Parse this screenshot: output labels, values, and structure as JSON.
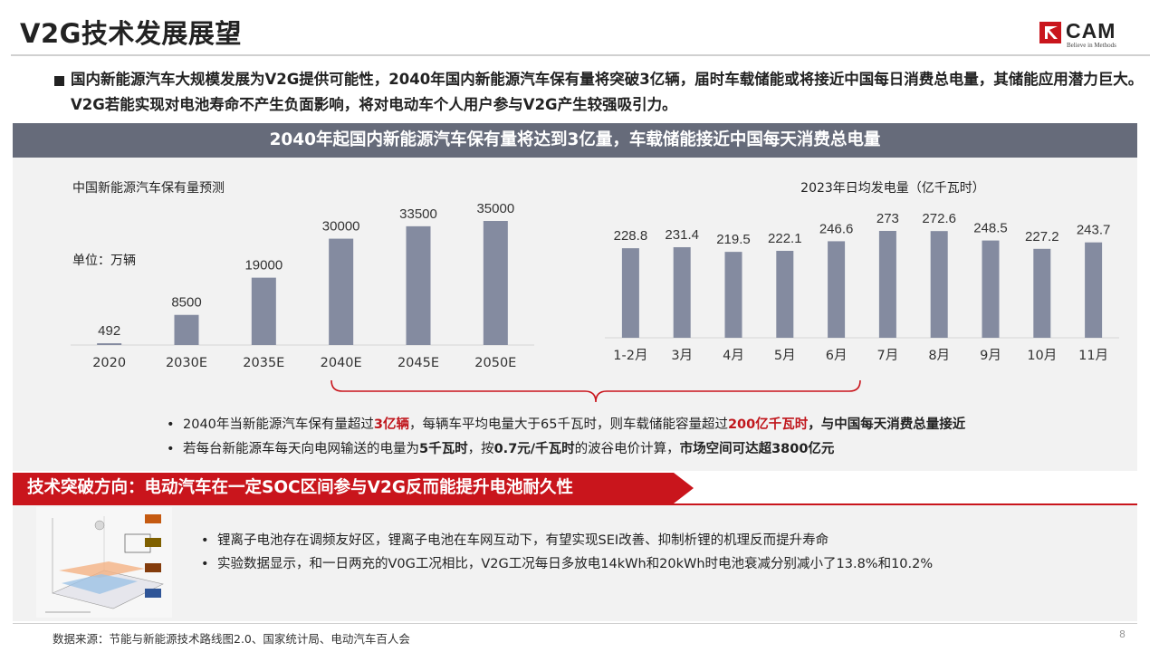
{
  "header": {
    "title": "V2G技术发展展望",
    "logo_text": "CAM",
    "logo_tagline": "Believe in Methods"
  },
  "intro": "国内新能源汽车大规模发展为V2G提供可能性，2040年国内新能源汽车保有量将突破3亿辆，届时车载储能或将接近中国每日消费总电量，其储能应用潜力巨大。V2G若能实现对电池寿命不产生负面影响，将对电动车个人用户参与V2G产生较强吸引力。",
  "banner": "2040年起国内新能源汽车保有量将达到3亿量，车载储能接近中国每天消费总电量",
  "chart_data": [
    {
      "type": "bar",
      "title": "中国新能源汽车保有量预测",
      "unit_label": "单位：万辆",
      "categories": [
        "2020",
        "2030E",
        "2035E",
        "2040E",
        "2045E",
        "2050E"
      ],
      "values": [
        492,
        8500,
        19000,
        30000,
        33500,
        35000
      ],
      "ylim": [
        0,
        35000
      ],
      "color": "#848ba0"
    },
    {
      "type": "bar",
      "title": "2023年日均发电量（亿千瓦时）",
      "categories": [
        "1-2月",
        "3月",
        "4月",
        "5月",
        "6月",
        "7月",
        "8月",
        "9月",
        "10月",
        "11月"
      ],
      "values": [
        228.8,
        231.4,
        219.5,
        222.1,
        246.6,
        273,
        272.6,
        248.5,
        227.2,
        243.7
      ],
      "ylim": [
        0,
        273
      ],
      "color": "#848ba0"
    }
  ],
  "bullets_top": [
    {
      "parts": [
        {
          "t": "2040年当新能源汽车保有量超过",
          "s": ""
        },
        {
          "t": "3亿辆",
          "s": "red"
        },
        {
          "t": "，每辆车平均电量大于65千瓦时，则车载储能容量超过",
          "s": ""
        },
        {
          "t": "200亿千瓦时",
          "s": "red"
        },
        {
          "t": "，与中国每天消费总量接近",
          "s": "b"
        }
      ]
    },
    {
      "parts": [
        {
          "t": "若每台新能源车每天向电网输送的电量为",
          "s": ""
        },
        {
          "t": "5千瓦时",
          "s": "b"
        },
        {
          "t": "，按",
          "s": ""
        },
        {
          "t": "0.7元/千瓦时",
          "s": "b"
        },
        {
          "t": "的波谷电价计算，",
          "s": ""
        },
        {
          "t": "市场空间可达超3800亿元",
          "s": "b"
        }
      ]
    }
  ],
  "section2_title": "技术突破方向：电动汽车在一定SOC区间参与V2G反而能提升电池耐久性",
  "bullets_bottom": [
    "锂离子电池存在调频友好区，锂离子电池在车网互动下，有望实现SEI改善、抑制析锂的机理反而提升寿命",
    "实验数据显示，和一日两充的V0G工况相比，V2G工况每日多放电14kWh和20kWh时电池衰减分别减小了13.8%和10.2%"
  ],
  "footer": "数据来源：节能与新能源技术路线图2.0、国家统计局、电动汽车百人会",
  "page_number": "8",
  "colors": {
    "accent_red": "#c9151c",
    "banner_gray": "#666b7a",
    "bar": "#848ba0",
    "panel": "#f2f2f2"
  }
}
